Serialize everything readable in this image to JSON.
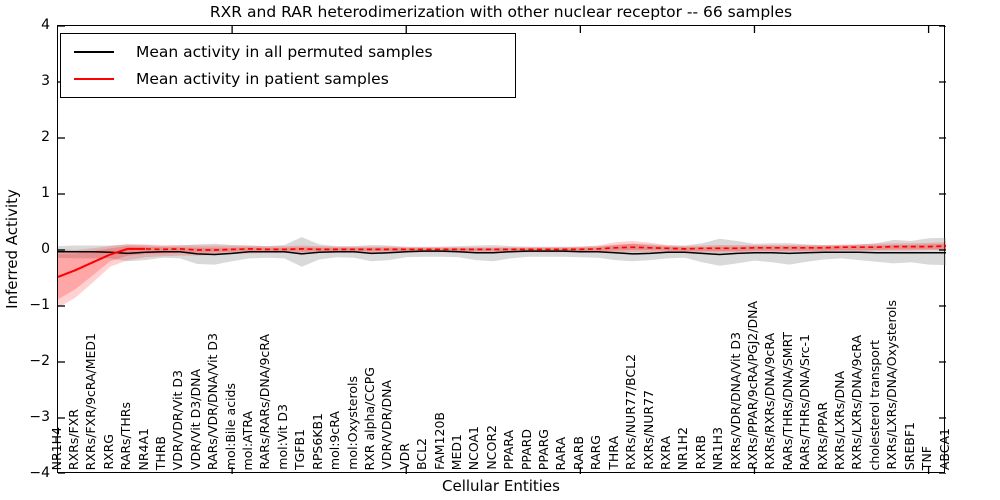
{
  "title": "RXR and RAR heterodimerization with other nuclear receptor -- 66 samples",
  "axes": {
    "ylabel": "Inferred Activity",
    "xlabel": "Cellular Entities",
    "yticks": [
      "4",
      "3",
      "2",
      "1",
      "0",
      "−1",
      "−2",
      "−3",
      "−4"
    ]
  },
  "legend": {
    "items": [
      {
        "label": "Mean activity in all permuted samples",
        "color": "#000000"
      },
      {
        "label": "Mean activity in patient samples",
        "color": "#ff0000"
      }
    ]
  },
  "colors": {
    "permuted_line": "#000000",
    "patient_line": "#ff0000",
    "permuted_band": "#888888",
    "patient_band": "#ff0000"
  },
  "chart_data": {
    "type": "line",
    "title": "RXR and RAR heterodimerization with other nuclear receptor -- 66 samples",
    "xlabel": "Cellular Entities",
    "ylabel": "Inferred Activity",
    "ylim": [
      -4,
      4
    ],
    "grid": false,
    "legend_position": "upper left",
    "categories": [
      "NR1H4",
      "RXRs/FXR",
      "RXRs/FXR/9cRA/MED1",
      "RXRG",
      "RARs/THRs",
      "NR4A1",
      "THRB",
      "VDR/VDR/Vit D3",
      "VDR/Vit D3/DNA",
      "RARs/VDR/DNA/Vit D3",
      "mol:Bile acids",
      "mol:ATRA",
      "RARs/RARs/DNA/9cRA",
      "mol:Vit D3",
      "TGFB1",
      "RPS6KB1",
      "mol:9cRA",
      "mol:Oxysterols",
      "RXR alpha/CCPG",
      "VDR/VDR/DNA",
      "VDR",
      "BCL2",
      "FAM120B",
      "MED1",
      "NCOA1",
      "NCOR2",
      "PPARA",
      "PPARD",
      "PPARG",
      "RARA",
      "RARB",
      "RARG",
      "THRA",
      "RXRs/NUR77/BCL2",
      "RXRs/NUR77",
      "RXRA",
      "NR1H2",
      "RXRB",
      "NR1H3",
      "RXRs/VDR/DNA/Vit D3",
      "RXRs/PPAR/9cRA/PGJ2/DNA",
      "RXRs/RXRs/DNA/9cRA",
      "RARs/THRs/DNA/SMRT",
      "RARs/THRs/DNA/Src-1",
      "RXRs/PPAR",
      "RXRs/LXRs/DNA",
      "RXRs/LXRs/DNA/9cRA",
      "cholesterol transport",
      "RXRs/LXRs/DNA/Oxysterols",
      "SREBF1",
      "TNF",
      "ABCA1"
    ],
    "series": [
      {
        "name": "Mean activity in all permuted samples",
        "color": "#000000",
        "style": "solid",
        "values": [
          -0.03,
          -0.03,
          -0.03,
          -0.04,
          -0.06,
          -0.04,
          -0.03,
          -0.03,
          -0.07,
          -0.08,
          -0.06,
          -0.03,
          -0.03,
          -0.03,
          -0.07,
          -0.04,
          -0.03,
          -0.03,
          -0.06,
          -0.05,
          -0.03,
          -0.02,
          -0.02,
          -0.03,
          -0.05,
          -0.05,
          -0.03,
          -0.02,
          -0.02,
          -0.02,
          -0.03,
          -0.03,
          -0.05,
          -0.07,
          -0.06,
          -0.04,
          -0.04,
          -0.06,
          -0.08,
          -0.06,
          -0.05,
          -0.05,
          -0.06,
          -0.05,
          -0.04,
          -0.04,
          -0.04,
          -0.05,
          -0.05,
          -0.05,
          -0.05,
          -0.05
        ]
      },
      {
        "name": "Mean activity in patient samples",
        "color": "#ff0000",
        "style": "solid-then-dashed",
        "values": [
          -0.48,
          -0.36,
          -0.22,
          -0.08,
          0.02,
          0.02,
          0.01,
          0.02,
          0.0,
          0.0,
          0.01,
          0.02,
          0.01,
          0.01,
          0.02,
          0.01,
          0.01,
          0.01,
          0.01,
          0.01,
          0.01,
          0.01,
          0.01,
          0.01,
          0.01,
          0.01,
          0.01,
          0.01,
          0.01,
          0.01,
          0.01,
          0.02,
          0.04,
          0.05,
          0.04,
          0.03,
          0.02,
          0.03,
          0.03,
          0.03,
          0.04,
          0.04,
          0.04,
          0.04,
          0.04,
          0.05,
          0.05,
          0.05,
          0.06,
          0.06,
          0.06,
          0.07
        ]
      }
    ],
    "bands": [
      {
        "name": "permuted-range",
        "color": "#888888",
        "opacity": 0.32,
        "lo": [
          -0.14,
          -0.15,
          -0.15,
          -0.15,
          -0.2,
          -0.18,
          -0.14,
          -0.15,
          -0.25,
          -0.26,
          -0.2,
          -0.15,
          -0.14,
          -0.15,
          -0.3,
          -0.17,
          -0.13,
          -0.14,
          -0.2,
          -0.18,
          -0.13,
          -0.12,
          -0.12,
          -0.13,
          -0.18,
          -0.2,
          -0.15,
          -0.12,
          -0.12,
          -0.12,
          -0.13,
          -0.14,
          -0.18,
          -0.2,
          -0.18,
          -0.15,
          -0.14,
          -0.22,
          -0.28,
          -0.24,
          -0.19,
          -0.22,
          -0.26,
          -0.21,
          -0.17,
          -0.15,
          -0.18,
          -0.21,
          -0.24,
          -0.22,
          -0.26,
          -0.27
        ],
        "hi": [
          0.07,
          0.08,
          0.08,
          0.08,
          0.1,
          0.09,
          0.07,
          0.08,
          0.1,
          0.11,
          0.09,
          0.08,
          0.07,
          0.09,
          0.23,
          0.1,
          0.07,
          0.07,
          0.09,
          0.08,
          0.06,
          0.06,
          0.06,
          0.07,
          0.08,
          0.09,
          0.07,
          0.06,
          0.06,
          0.06,
          0.06,
          0.07,
          0.09,
          0.11,
          0.1,
          0.08,
          0.08,
          0.12,
          0.2,
          0.16,
          0.11,
          0.12,
          0.12,
          0.1,
          0.09,
          0.08,
          0.1,
          0.12,
          0.18,
          0.16,
          0.21,
          0.22
        ]
      },
      {
        "name": "patient-range-outer",
        "color": "#ff0000",
        "opacity": 0.18,
        "lo": [
          -1.03,
          -0.85,
          -0.58,
          -0.3,
          -0.18,
          -0.13,
          -0.11,
          -0.1,
          -0.1,
          -0.09,
          -0.07,
          -0.06,
          -0.05,
          -0.05,
          -0.06,
          -0.05,
          -0.05,
          -0.05,
          -0.05,
          -0.05,
          -0.04,
          -0.04,
          -0.04,
          -0.04,
          -0.04,
          -0.04,
          -0.04,
          -0.04,
          -0.04,
          -0.04,
          -0.04,
          -0.04,
          -0.04,
          -0.04,
          -0.04,
          -0.04,
          -0.04,
          -0.04,
          -0.05,
          -0.04,
          -0.03,
          -0.03,
          -0.03,
          -0.03,
          -0.02,
          -0.02,
          -0.02,
          -0.01,
          -0.01,
          -0.01,
          0.0,
          0.0
        ],
        "hi": [
          0.02,
          0.0,
          0.03,
          0.07,
          0.1,
          0.1,
          0.09,
          0.09,
          0.08,
          0.08,
          0.08,
          0.08,
          0.07,
          0.07,
          0.08,
          0.07,
          0.06,
          0.06,
          0.06,
          0.06,
          0.05,
          0.05,
          0.05,
          0.05,
          0.05,
          0.05,
          0.05,
          0.05,
          0.05,
          0.05,
          0.06,
          0.08,
          0.14,
          0.16,
          0.13,
          0.09,
          0.07,
          0.08,
          0.09,
          0.09,
          0.09,
          0.09,
          0.09,
          0.09,
          0.09,
          0.1,
          0.1,
          0.11,
          0.12,
          0.12,
          0.13,
          0.14
        ]
      },
      {
        "name": "patient-range-inner",
        "color": "#ff0000",
        "opacity": 0.2,
        "lo": [
          -0.88,
          -0.7,
          -0.45,
          -0.2,
          -0.1,
          -0.07,
          -0.06,
          -0.05,
          -0.05,
          -0.04,
          -0.03,
          -0.02,
          -0.02,
          -0.02,
          -0.03,
          -0.02,
          -0.02,
          -0.02,
          -0.02,
          -0.02,
          -0.02,
          -0.02,
          -0.02,
          -0.02,
          -0.02,
          -0.02,
          -0.02,
          -0.02,
          -0.02,
          -0.02,
          -0.02,
          -0.02,
          -0.01,
          0.0,
          0.0,
          -0.01,
          -0.02,
          -0.02,
          -0.02,
          -0.02,
          -0.01,
          -0.01,
          -0.01,
          -0.01,
          -0.01,
          0.0,
          0.0,
          0.0,
          0.01,
          0.01,
          0.01,
          0.01
        ],
        "hi": [
          -0.07,
          -0.06,
          -0.02,
          0.03,
          0.07,
          0.06,
          0.05,
          0.05,
          0.04,
          0.04,
          0.04,
          0.05,
          0.04,
          0.04,
          0.05,
          0.04,
          0.04,
          0.04,
          0.04,
          0.04,
          0.03,
          0.03,
          0.03,
          0.03,
          0.03,
          0.03,
          0.03,
          0.03,
          0.03,
          0.03,
          0.04,
          0.05,
          0.09,
          0.11,
          0.08,
          0.06,
          0.05,
          0.05,
          0.06,
          0.06,
          0.07,
          0.07,
          0.07,
          0.07,
          0.07,
          0.08,
          0.08,
          0.08,
          0.09,
          0.09,
          0.1,
          0.11
        ]
      }
    ],
    "x_major_tick_indices": [
      10,
      20,
      30,
      40,
      50
    ],
    "y_tick_values": [
      4,
      3,
      2,
      1,
      0,
      -1,
      -2,
      -3,
      -4
    ]
  }
}
